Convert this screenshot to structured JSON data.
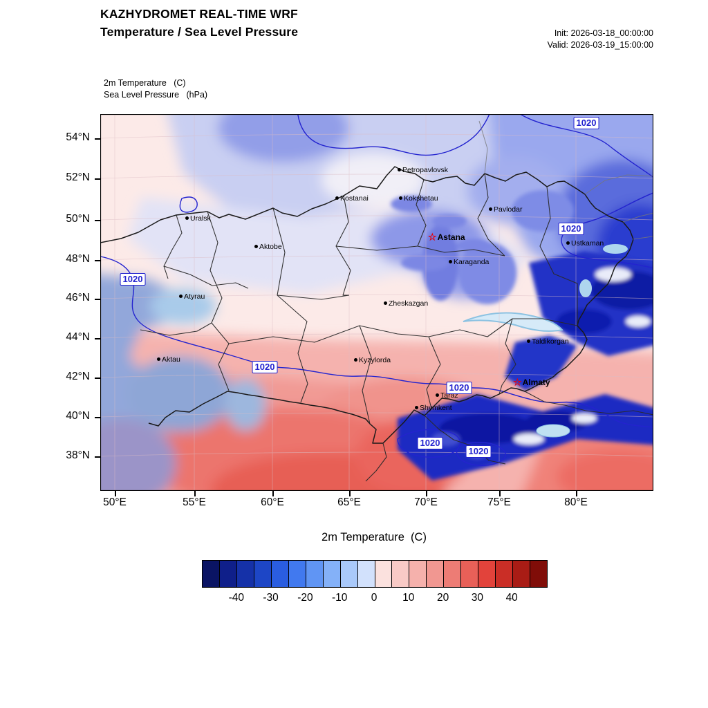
{
  "header": {
    "title_line1": "KAZHYDROMET REAL-TIME WRF",
    "title_line2": "Temperature / Sea Level Pressure",
    "init_line": "Init: 2026-03-18_00:00:00",
    "valid_line": "Valid: 2026-03-19_15:00:00"
  },
  "map": {
    "field_label_line1": "2m Temperature   (C)",
    "field_label_line2": "Sea Level Pressure   (hPa)",
    "lat_ticks": [
      "54°N",
      "52°N",
      "50°N",
      "48°N",
      "46°N",
      "44°N",
      "42°N",
      "40°N",
      "38°N"
    ],
    "lon_ticks": [
      "50°E",
      "55°E",
      "60°E",
      "65°E",
      "70°E",
      "75°E",
      "80°E"
    ],
    "cities": [
      "Petropavlovsk",
      "Kostanai",
      "Kokshetau",
      "Pavlodar",
      "Uralsk",
      "Aktobe",
      "Karaganda",
      "Ustkaman",
      "Atyrau",
      "Zheskazgan",
      "Taldikorgan",
      "Aktau",
      "Kyzylorda",
      "Taraz",
      "Shymkent"
    ],
    "capitals": [
      "Astana",
      "Almaty"
    ],
    "pressure_labels": [
      "1020",
      "1020",
      "1020",
      "1020",
      "1020",
      "1020",
      "1020"
    ],
    "contour_color": "#2323cf",
    "border_color": "#1a1a1a"
  },
  "colorbar": {
    "title": "2m Temperature  (C)",
    "tick_labels": [
      "-40",
      "-30",
      "-20",
      "-10",
      "0",
      "10",
      "20",
      "30",
      "40"
    ],
    "colors": [
      "#0a1464",
      "#0f1f8a",
      "#1531a8",
      "#1d46c6",
      "#2a5de0",
      "#4179ef",
      "#6095f4",
      "#84b1f8",
      "#a9c9fa",
      "#d2e1fc",
      "#fbe1de",
      "#f8cac6",
      "#f5b1ac",
      "#f19791",
      "#ed7c75",
      "#e86058",
      "#e2433b",
      "#ca2e26",
      "#a91c15",
      "#800d08"
    ]
  }
}
